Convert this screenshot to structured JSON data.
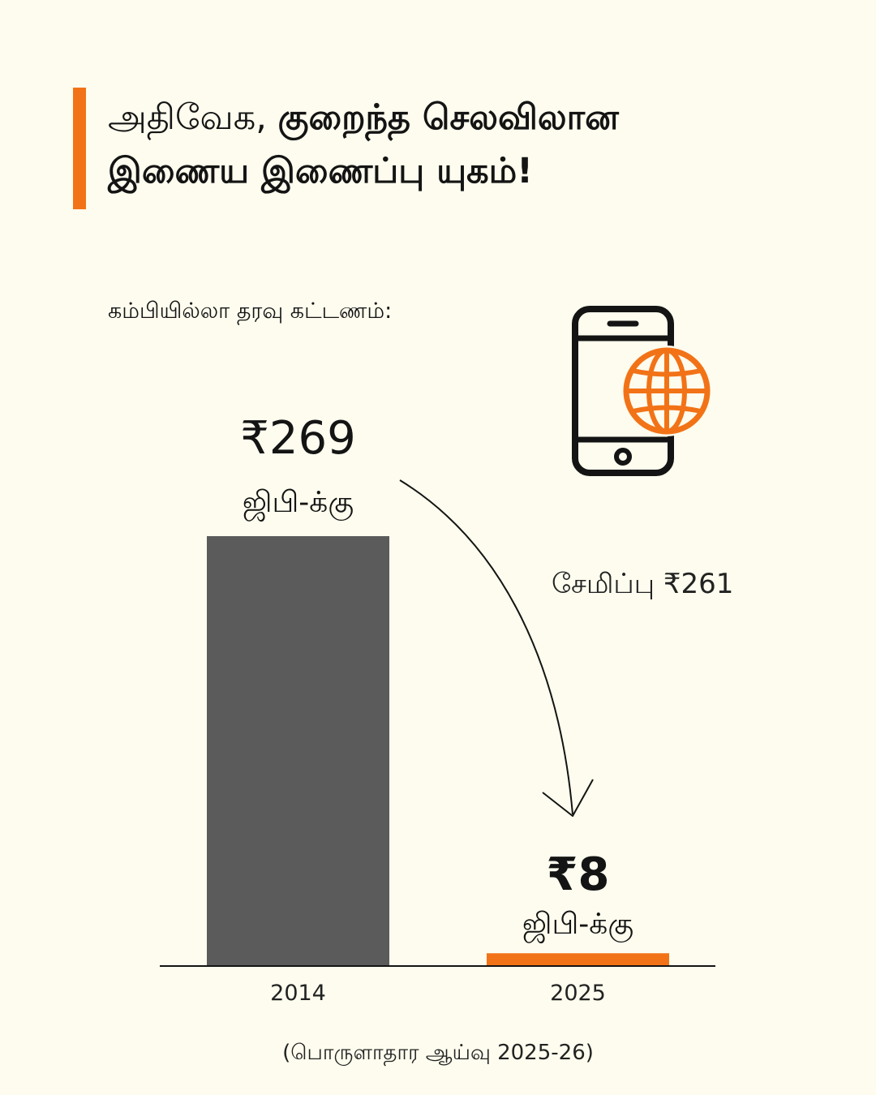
{
  "headline": {
    "light": "அதிவேக,",
    "bold_line1": "குறைந்த செலவிலான",
    "bold_line2": "இணைய இணைப்பு யுகம்!"
  },
  "subhead": "கம்பியில்லா தரவு கட்டணம்:",
  "saving_label": "சேமிப்பு ₹261",
  "source": "(பொருளாதார ஆய்வு 2025-26)",
  "icon": "smartphone-globe-icon",
  "colors": {
    "background": "#fdfcee",
    "accent": "#f27317",
    "bar_2014": "#5b5b5b",
    "bar_2025": "#f27317"
  },
  "chart_data": {
    "type": "bar",
    "title": "கம்பியில்லா தரவு கட்டணம்:",
    "categories": [
      "2014",
      "2025"
    ],
    "values": [
      269,
      8
    ],
    "value_labels": [
      "₹269",
      "₹8"
    ],
    "unit_labels": [
      "ஜிபி-க்கு",
      "ஜிபி-க்கு"
    ],
    "bar_colors": [
      "#5b5b5b",
      "#f27317"
    ],
    "ylim": [
      0,
      269
    ],
    "annotation": "சேமிப்பு ₹261",
    "grid": false
  }
}
